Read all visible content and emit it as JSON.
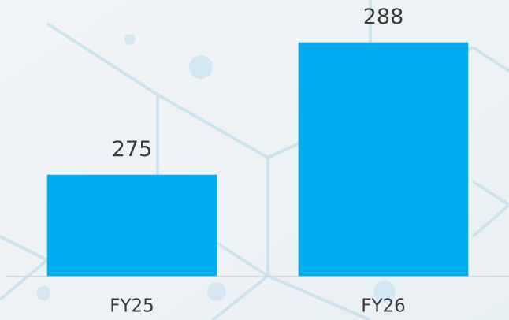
{
  "chart_data": {
    "type": "bar",
    "categories": [
      "FY25",
      "FY26"
    ],
    "values": [
      275,
      288
    ],
    "color": "#00aeef",
    "ylim": [
      265,
      292
    ]
  }
}
